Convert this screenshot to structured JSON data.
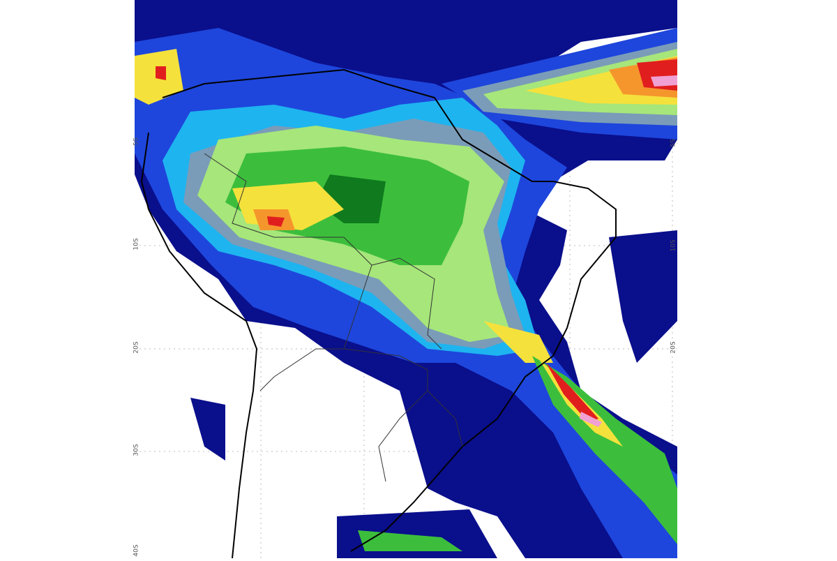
{
  "map": {
    "lat_labels_left": [
      "5S",
      "10S",
      "20S",
      "30S",
      "40S"
    ],
    "lat_labels_right": [
      "5S",
      "10S",
      "20S"
    ],
    "palette": {
      "navy": "#0a0f8c",
      "blue": "#1e46dc",
      "cyan": "#1eb4f0",
      "greyblue": "#7a9cb8",
      "lightgreen": "#a6e67a",
      "green": "#3cbe3c",
      "darkgreen": "#0f7a1e",
      "yellow": "#f5e13c",
      "orange": "#f5962d",
      "red": "#e11e1e",
      "magenta": "#f0a0d2"
    }
  }
}
